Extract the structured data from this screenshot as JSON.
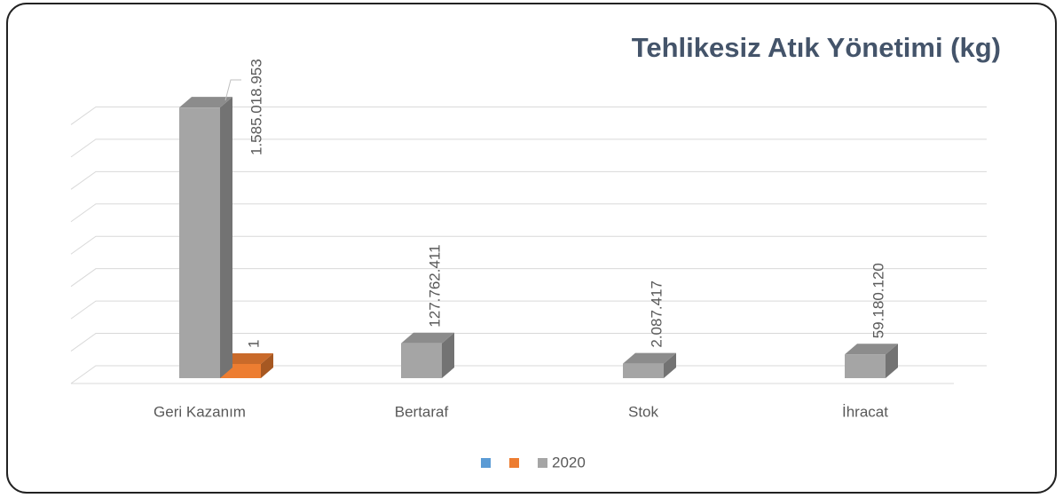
{
  "chart_data": {
    "type": "bar3d",
    "title": "Tehlikesiz Atık Yönetimi (kg)",
    "categories": [
      "Geri Kazanım",
      "Bertaraf",
      "Stok",
      "İhracat"
    ],
    "series": [
      {
        "color": "#5b9bd5",
        "values": [
          null,
          null,
          null,
          null
        ]
      },
      {
        "color": "#ed7d31",
        "values": [
          1,
          null,
          null,
          null
        ],
        "value_labels": [
          "1",
          null,
          null,
          null
        ]
      },
      {
        "name": "2020",
        "color": "#a5a5a5",
        "values": [
          1585018953,
          127762411,
          2087417,
          59180120
        ],
        "value_labels": [
          "1.585.018.953",
          "127.762.411",
          "2.087.417",
          "59.180.120"
        ]
      }
    ],
    "ylim": [
      0,
      1800000000
    ],
    "yticks": [
      0,
      200000000,
      400000000,
      600000000,
      800000000,
      1000000000,
      1200000000,
      1400000000,
      1600000000
    ],
    "grid": true,
    "legend": "bottom"
  }
}
